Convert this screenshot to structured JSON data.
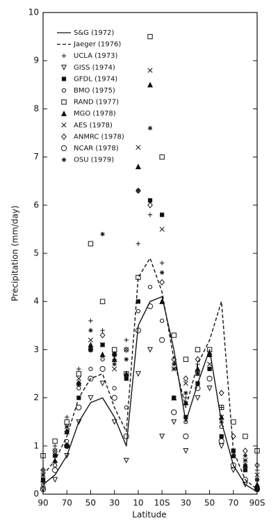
{
  "chart_data": {
    "type": "scatter",
    "x_label": "Latitude",
    "y_label": "Precipitation (mm/day)",
    "xlim": [
      90,
      -90
    ],
    "ylim": [
      0,
      10
    ],
    "xticks": [
      90,
      70,
      50,
      30,
      10,
      {
        "value": -10,
        "label": "10S"
      },
      {
        "value": -30,
        "label": "30"
      },
      {
        "value": -50,
        "label": "50"
      },
      {
        "value": -70,
        "label": "70"
      },
      {
        "value": -90,
        "label": "90S"
      }
    ],
    "xtick_labels_override": null,
    "yticks": [
      0,
      1,
      2,
      3,
      4,
      5,
      6,
      7,
      8,
      9,
      10
    ],
    "legend": "upper left",
    "x": [
      90,
      80,
      70,
      60,
      50,
      40,
      30,
      20,
      10,
      0,
      -10,
      -20,
      -30,
      -40,
      -50,
      -60,
      -70,
      -80,
      -90
    ],
    "series": [
      {
        "name": "S&G (1972)",
        "color": "#111111",
        "style": "solid",
        "values": [
          0.2,
          0.4,
          0.8,
          1.5,
          1.9,
          2.0,
          1.6,
          1.0,
          3.5,
          4.0,
          4.1,
          3.0,
          1.5,
          2.3,
          3.0,
          1.5,
          0.6,
          0.2,
          0.05
        ]
      },
      {
        "name": "Jaeger (1976)",
        "color": "#111111",
        "style": "dashed",
        "values": [
          0.4,
          0.7,
          1.2,
          2.0,
          2.4,
          2.5,
          1.8,
          1.3,
          4.5,
          4.9,
          4.2,
          2.8,
          1.8,
          2.7,
          3.2,
          4.0,
          0.9,
          0.3,
          0.1
        ]
      },
      {
        "name": "UCLA (1973)",
        "color": "#111111",
        "marker": "plus",
        "values": [
          0.5,
          1.0,
          1.6,
          2.6,
          3.6,
          3.4,
          2.8,
          3.2,
          5.2,
          5.8,
          4.8,
          2.6,
          2.0,
          2.7,
          2.6,
          1.8,
          0.9,
          0.7,
          0.5
        ]
      },
      {
        "name": "GISS (1974)",
        "color": "#111111",
        "marker": "triangle-down",
        "values": [
          0.1,
          0.3,
          0.8,
          1.5,
          2.0,
          2.3,
          1.5,
          0.7,
          2.5,
          3.0,
          1.2,
          1.5,
          0.9,
          2.0,
          2.2,
          1.0,
          0.5,
          0.2,
          0.1
        ]
      },
      {
        "name": "GFDL (1974)",
        "color": "#111111",
        "marker": "square-filled",
        "values": [
          0.3,
          0.8,
          1.0,
          2.0,
          3.0,
          3.1,
          2.9,
          2.4,
          4.0,
          6.1,
          5.8,
          2.0,
          1.6,
          2.3,
          2.6,
          1.2,
          0.9,
          0.5,
          0.1
        ]
      },
      {
        "name": "BMO (1975)",
        "color": "#111111",
        "marker": "circle-small",
        "values": [
          0.2,
          0.6,
          1.1,
          2.2,
          2.6,
          2.8,
          2.2,
          1.8,
          3.8,
          4.3,
          3.6,
          2.0,
          1.5,
          2.5,
          2.9,
          1.4,
          0.8,
          0.6,
          0.3
        ]
      },
      {
        "name": "RAND (1977)",
        "color": "#111111",
        "marker": "square",
        "values": [
          0.8,
          1.1,
          1.5,
          2.5,
          5.2,
          4.0,
          3.0,
          2.5,
          4.5,
          9.5,
          7.0,
          3.3,
          2.8,
          3.0,
          3.0,
          1.8,
          1.5,
          1.2,
          0.9
        ]
      },
      {
        "name": "MGO (1978)",
        "color": "#111111",
        "marker": "triangle-filled",
        "values": [
          0.3,
          0.7,
          1.3,
          2.3,
          3.1,
          2.9,
          2.8,
          2.5,
          6.8,
          8.5,
          4.0,
          2.0,
          1.9,
          2.6,
          2.9,
          1.6,
          0.8,
          0.6,
          0.2
        ]
      },
      {
        "name": "AES (1978)",
        "color": "#111111",
        "marker": "cross",
        "values": [
          0.4,
          0.9,
          1.4,
          2.4,
          3.2,
          3.1,
          2.6,
          3.0,
          7.2,
          8.8,
          5.5,
          2.6,
          2.3,
          2.5,
          2.7,
          1.6,
          0.9,
          0.7,
          0.4
        ]
      },
      {
        "name": "ANMRC (1978)",
        "color": "#111111",
        "marker": "diamond",
        "values": [
          0.5,
          0.9,
          1.3,
          2.3,
          3.0,
          3.3,
          2.9,
          3.0,
          6.3,
          6.0,
          4.4,
          2.8,
          2.4,
          2.8,
          2.9,
          2.1,
          1.2,
          0.9,
          0.6
        ]
      },
      {
        "name": "NCAR (1978)",
        "color": "#111111",
        "marker": "circle",
        "values": [
          0.1,
          0.5,
          1.0,
          1.8,
          2.4,
          2.6,
          2.0,
          1.2,
          3.4,
          3.9,
          3.2,
          1.7,
          1.2,
          2.2,
          2.4,
          1.1,
          0.6,
          0.3,
          0.1
        ]
      },
      {
        "name": "OSU (1979)",
        "color": "#111111",
        "marker": "asterisk",
        "values": [
          0.4,
          0.8,
          1.4,
          2.3,
          3.4,
          5.4,
          2.7,
          2.8,
          6.3,
          7.6,
          4.6,
          2.7,
          2.1,
          2.5,
          2.6,
          1.5,
          0.9,
          0.8,
          0.3
        ]
      }
    ]
  }
}
